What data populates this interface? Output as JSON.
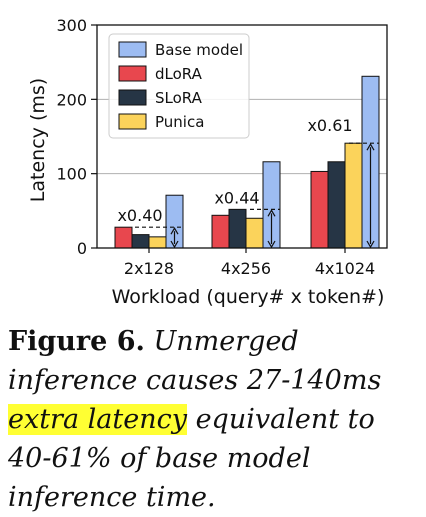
{
  "chart_data": {
    "type": "bar",
    "xlabel": "Workload (query# x token#)",
    "ylabel": "Latency (ms)",
    "ylim": [
      0,
      300
    ],
    "yticks": [
      0,
      100,
      200,
      300
    ],
    "grid": "horizontal",
    "legend_position": "top-left",
    "categories": [
      "2x128",
      "4x256",
      "4x1024"
    ],
    "series": [
      {
        "name": "Base model",
        "color": "#9dbcf2",
        "values": [
          71,
          116,
          231
        ]
      },
      {
        "name": "dLoRA",
        "color": "#e8474e",
        "values": [
          28,
          44,
          103
        ]
      },
      {
        "name": "SLoRA",
        "color": "#263545",
        "values": [
          18,
          52,
          116
        ]
      },
      {
        "name": "Punica",
        "color": "#fbd35b",
        "values": [
          15,
          40,
          141
        ]
      }
    ],
    "annotations": [
      "x0.40",
      "x0.44",
      "x0.61"
    ]
  },
  "caption": {
    "label": "Figure 6.",
    "text_before": "Unmerged inference causes 27-140ms",
    "highlight": "extra latency",
    "text_after": "equivalent to 40-61% of base model inference time."
  }
}
